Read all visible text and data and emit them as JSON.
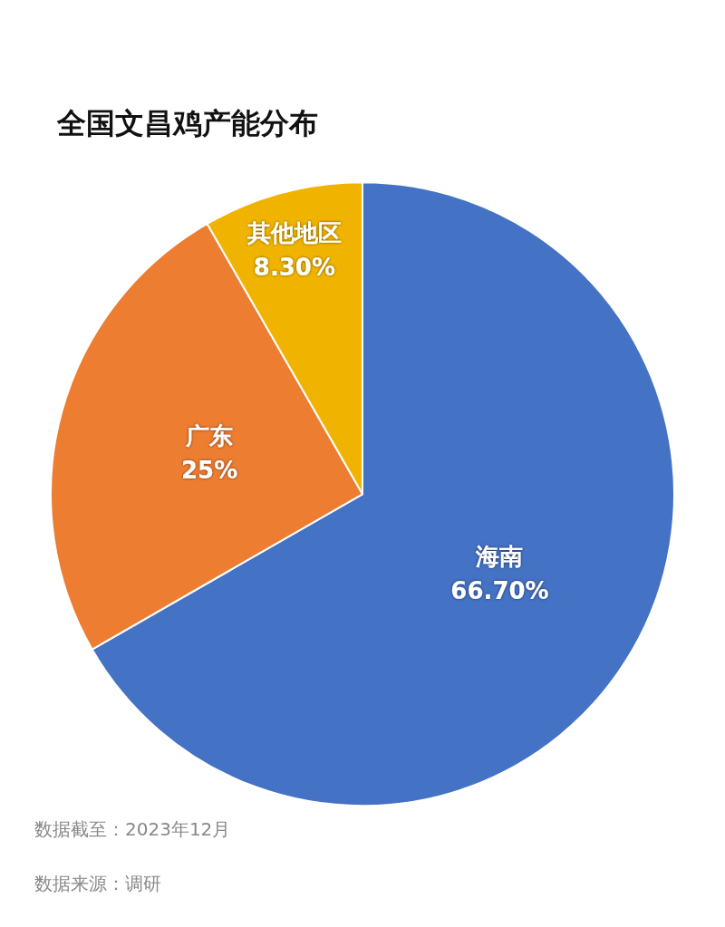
{
  "chart_data": {
    "type": "pie",
    "title": "全国文昌鸡产能分布",
    "categories": [
      "海南",
      "广东",
      "其他地区"
    ],
    "values": [
      66.7,
      25,
      8.3
    ],
    "value_labels": [
      "66.70%",
      "25%",
      "8.30%"
    ],
    "colors": [
      "#4472c4",
      "#ed7d31",
      "#f0b400"
    ],
    "legend": false,
    "annotations": [
      "数据截至：2023年12月",
      "数据来源：调研"
    ]
  }
}
